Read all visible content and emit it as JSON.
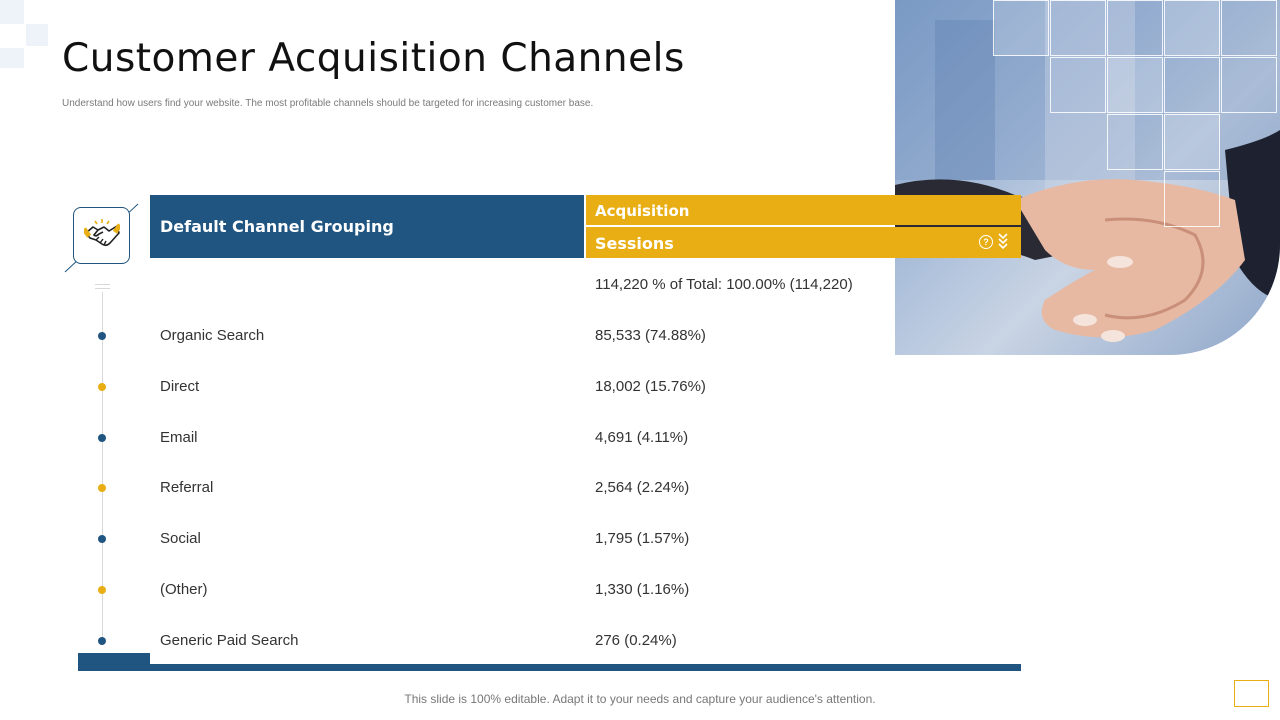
{
  "slide": {
    "title": "Customer Acquisition Channels",
    "subtitle": "Understand how users find your website. The most profitable channels should be targeted for increasing customer base.",
    "footer": "This slide is 100% editable. Adapt it to your needs and capture your audience's attention."
  },
  "table": {
    "col1_header": "Default Channel Grouping",
    "col2_group": "Acquisition",
    "col2_header": "Sessions",
    "total": "114,220 % of Total: 100.00% (114,220)",
    "rows": [
      {
        "label": "Organic Search",
        "value": "85,533 (74.88%)"
      },
      {
        "label": "Direct",
        "value": "18,002 (15.76%)"
      },
      {
        "label": "Email",
        "value": "4,691 (4.11%)"
      },
      {
        "label": "Referral",
        "value": "2,564 (2.24%)"
      },
      {
        "label": "Social",
        "value": "1,795 (1.57%)"
      },
      {
        "label": "(Other)",
        "value": "1,330 (1.16%)"
      },
      {
        "label": "Generic Paid Search",
        "value": "276 (0.24%)"
      }
    ]
  },
  "icons": {
    "logo": "handshake-icon",
    "help": "question-circle-icon",
    "sort": "double-chevron-down-icon"
  },
  "colors": {
    "navy": "#1f5580",
    "gold": "#e8ae14",
    "bullet_alternation": [
      "#1f5580",
      "#e8ae14"
    ]
  }
}
